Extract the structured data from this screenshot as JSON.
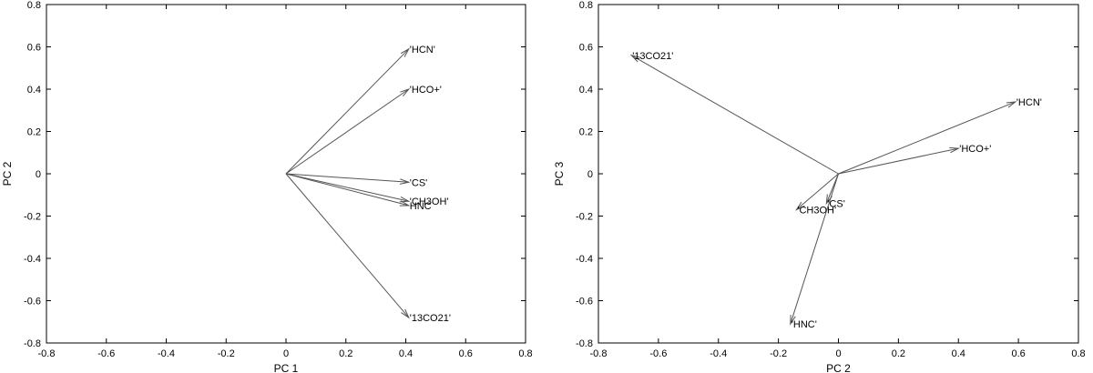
{
  "chart_data": [
    {
      "type": "biplot",
      "xlabel": "PC 1",
      "ylabel": "PC 2",
      "xlim": [
        -0.8,
        0.8
      ],
      "ylim": [
        -0.8,
        0.8
      ],
      "xticks": [
        -0.8,
        -0.6,
        -0.4,
        -0.2,
        0,
        0.2,
        0.4,
        0.6,
        0.8
      ],
      "yticks": [
        -0.8,
        -0.6,
        -0.4,
        -0.2,
        0,
        0.2,
        0.4,
        0.6,
        0.8
      ],
      "vectors": [
        {
          "label": "'HCN'",
          "x": 0.41,
          "y": 0.59
        },
        {
          "label": "'HCO+'",
          "x": 0.41,
          "y": 0.4
        },
        {
          "label": "'CS'",
          "x": 0.41,
          "y": -0.04
        },
        {
          "label": "'CH3OH'",
          "x": 0.41,
          "y": -0.13
        },
        {
          "label": "HNC",
          "x": 0.41,
          "y": -0.15
        },
        {
          "label": "'13CO21'",
          "x": 0.41,
          "y": -0.68
        }
      ]
    },
    {
      "type": "biplot",
      "xlabel": "PC 2",
      "ylabel": "PC 3",
      "xlim": [
        -0.8,
        0.8
      ],
      "ylim": [
        -0.8,
        0.8
      ],
      "xticks": [
        -0.8,
        -0.6,
        -0.4,
        -0.2,
        0,
        0.2,
        0.4,
        0.6,
        0.8
      ],
      "yticks": [
        -0.8,
        -0.6,
        -0.4,
        -0.2,
        0,
        0.2,
        0.4,
        0.6,
        0.8
      ],
      "vectors": [
        {
          "label": "'13CO21'",
          "x": -0.69,
          "y": 0.56
        },
        {
          "label": "'HCN'",
          "x": 0.59,
          "y": 0.34
        },
        {
          "label": "'HCO+'",
          "x": 0.4,
          "y": 0.12
        },
        {
          "label": "'CS'",
          "x": -0.04,
          "y": -0.14
        },
        {
          "label": "'CH3OH'",
          "x": -0.14,
          "y": -0.17
        },
        {
          "label": "'HNC'",
          "x": -0.16,
          "y": -0.71
        }
      ]
    }
  ]
}
